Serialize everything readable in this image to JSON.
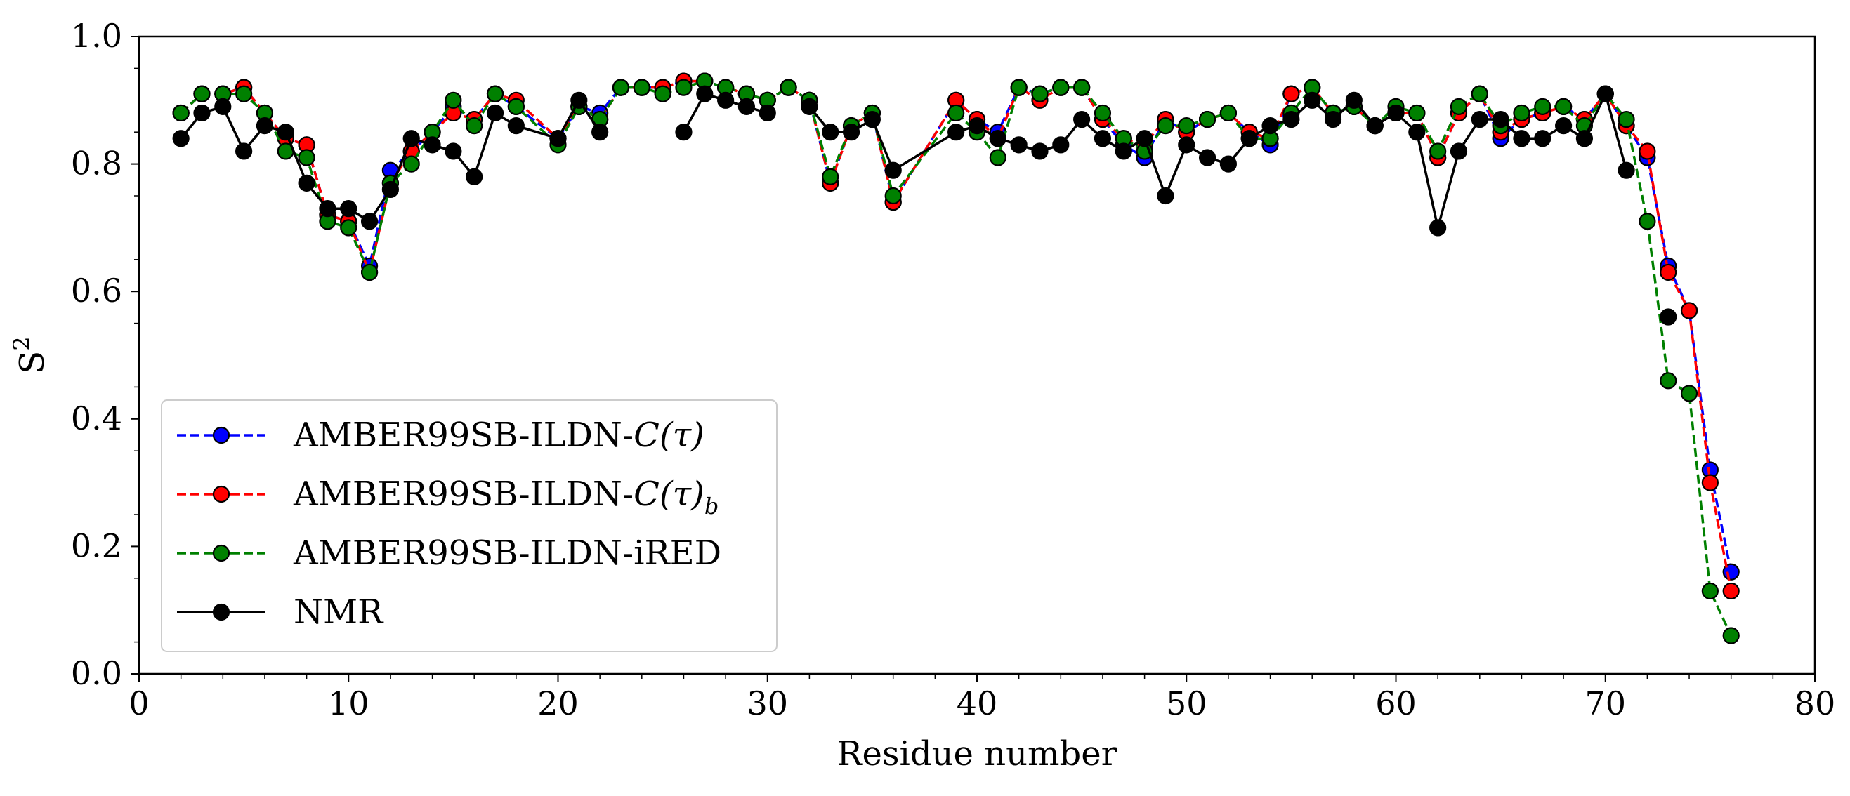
{
  "chart_data": {
    "type": "line",
    "xlabel": "Residue number",
    "ylabel": "S",
    "ylabel_superscript": "2",
    "xlim": [
      0,
      80
    ],
    "ylim": [
      0.0,
      1.0
    ],
    "xticks": [
      0,
      10,
      20,
      30,
      40,
      50,
      60,
      70,
      80
    ],
    "xtick_labels": [
      "0",
      "10",
      "20",
      "30",
      "40",
      "50",
      "60",
      "70",
      "80"
    ],
    "yticks": [
      0.0,
      0.2,
      0.4,
      0.6,
      0.8,
      1.0
    ],
    "ytick_labels": [
      "0.0",
      "0.2",
      "0.4",
      "0.6",
      "0.8",
      "1.0"
    ],
    "grid": false,
    "legend_position": "lower-left",
    "x": [
      2,
      3,
      4,
      5,
      6,
      7,
      8,
      9,
      10,
      11,
      12,
      13,
      14,
      15,
      16,
      17,
      18,
      20,
      21,
      22,
      23,
      24,
      25,
      26,
      27,
      28,
      29,
      30,
      31,
      32,
      33,
      34,
      35,
      36,
      39,
      40,
      41,
      42,
      43,
      44,
      45,
      46,
      47,
      48,
      49,
      50,
      51,
      52,
      53,
      54,
      55,
      56,
      57,
      58,
      59,
      60,
      61,
      62,
      63,
      64,
      65,
      66,
      67,
      68,
      69,
      70,
      71,
      72,
      73,
      74,
      75,
      76
    ],
    "series": [
      {
        "name": "AMBER99SB-ILDN-C(τ)",
        "legend_prefix": "AMBER99SB-ILDN-",
        "legend_math": "C(τ)",
        "legend_sub": "",
        "color": "#0000ff",
        "style": "dashed",
        "values": [
          0.88,
          0.91,
          0.91,
          0.92,
          0.88,
          0.84,
          0.83,
          0.72,
          0.71,
          0.64,
          0.79,
          0.82,
          0.85,
          0.89,
          0.87,
          0.91,
          0.89,
          0.84,
          0.89,
          0.88,
          0.92,
          0.92,
          0.92,
          0.93,
          0.93,
          0.92,
          0.91,
          0.9,
          0.92,
          0.9,
          0.77,
          0.86,
          0.88,
          0.74,
          0.9,
          0.87,
          0.85,
          0.92,
          0.91,
          0.92,
          0.92,
          0.87,
          0.83,
          0.81,
          0.87,
          0.85,
          0.87,
          0.88,
          0.85,
          0.83,
          0.91,
          0.92,
          0.88,
          0.89,
          0.86,
          0.88,
          0.88,
          0.81,
          0.88,
          0.91,
          0.84,
          0.87,
          0.88,
          0.89,
          0.87,
          0.91,
          0.86,
          0.81,
          0.64,
          0.57,
          0.32,
          0.16
        ]
      },
      {
        "name": "AMBER99SB-ILDN-C(τ)_b",
        "legend_prefix": "AMBER99SB-ILDN-",
        "legend_math": "C(τ)",
        "legend_sub": "b",
        "color": "#ff0000",
        "style": "dashed",
        "values": [
          0.88,
          0.91,
          0.91,
          0.92,
          0.88,
          0.84,
          0.83,
          0.72,
          0.71,
          0.63,
          0.77,
          0.82,
          0.85,
          0.88,
          0.87,
          0.91,
          0.9,
          0.84,
          0.89,
          0.87,
          0.92,
          0.92,
          0.92,
          0.93,
          0.93,
          0.92,
          0.91,
          0.9,
          0.92,
          0.9,
          0.77,
          0.86,
          0.88,
          0.74,
          0.9,
          0.87,
          0.84,
          0.92,
          0.9,
          0.92,
          0.92,
          0.87,
          0.84,
          0.83,
          0.87,
          0.85,
          0.87,
          0.88,
          0.85,
          0.84,
          0.91,
          0.92,
          0.88,
          0.89,
          0.86,
          0.88,
          0.88,
          0.81,
          0.88,
          0.91,
          0.85,
          0.87,
          0.88,
          0.89,
          0.87,
          0.91,
          0.86,
          0.82,
          0.63,
          0.57,
          0.3,
          0.13
        ]
      },
      {
        "name": "AMBER99SB-ILDN-iRED",
        "legend_prefix": "AMBER99SB-ILDN-iRED",
        "legend_math": "",
        "legend_sub": "",
        "color": "#008000",
        "style": "dashed",
        "values": [
          0.88,
          0.91,
          0.91,
          0.91,
          0.88,
          0.82,
          0.81,
          0.71,
          0.7,
          0.63,
          0.77,
          0.8,
          0.85,
          0.9,
          0.86,
          0.91,
          0.89,
          0.83,
          0.89,
          0.87,
          0.92,
          0.92,
          0.91,
          0.92,
          0.93,
          0.92,
          0.91,
          0.9,
          0.92,
          0.9,
          0.78,
          0.86,
          0.88,
          0.75,
          0.88,
          0.85,
          0.81,
          0.92,
          0.91,
          0.92,
          0.92,
          0.88,
          0.84,
          0.82,
          0.86,
          0.86,
          0.87,
          0.88,
          0.84,
          0.84,
          0.88,
          0.92,
          0.88,
          0.89,
          0.86,
          0.89,
          0.88,
          0.82,
          0.89,
          0.91,
          0.86,
          0.88,
          0.89,
          0.89,
          0.86,
          0.91,
          0.87,
          0.71,
          0.46,
          0.44,
          0.13,
          0.06
        ]
      },
      {
        "name": "NMR",
        "legend_prefix": "NMR",
        "legend_math": "",
        "legend_sub": "",
        "color": "#000000",
        "style": "solid",
        "values": [
          0.84,
          0.88,
          0.89,
          0.82,
          0.86,
          0.85,
          0.77,
          0.73,
          0.73,
          0.71,
          0.76,
          0.84,
          0.83,
          0.82,
          0.78,
          0.88,
          0.86,
          0.84,
          0.9,
          0.85,
          null,
          null,
          null,
          0.85,
          0.91,
          0.9,
          0.89,
          0.88,
          null,
          0.89,
          0.85,
          0.85,
          0.87,
          0.79,
          0.85,
          0.86,
          0.84,
          0.83,
          0.82,
          0.83,
          0.87,
          0.84,
          0.82,
          0.84,
          0.75,
          0.83,
          0.81,
          0.8,
          0.84,
          0.86,
          0.87,
          0.9,
          0.87,
          0.9,
          0.86,
          0.88,
          0.85,
          0.7,
          0.82,
          0.87,
          0.87,
          0.84,
          0.84,
          0.86,
          0.84,
          0.91,
          0.79,
          null,
          0.56,
          null,
          null,
          null
        ]
      }
    ]
  }
}
